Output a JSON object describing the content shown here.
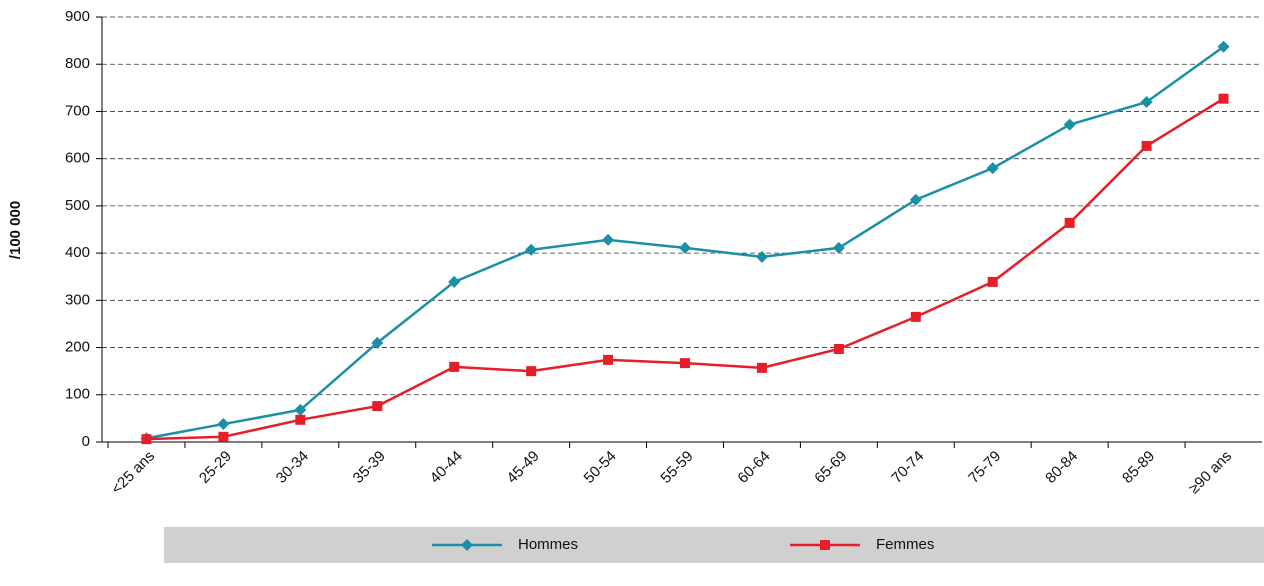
{
  "chart_data": {
    "type": "line",
    "ylabel": "/100 000",
    "categories": [
      "<25 ans",
      "25-29",
      "30-34",
      "35-39",
      "40-44",
      "45-49",
      "50-54",
      "55-59",
      "60-64",
      "65-69",
      "70-74",
      "75-79",
      "80-84",
      "85-89",
      "≥90 ans"
    ],
    "series": [
      {
        "name": "Hommes",
        "color": "#1a8fa6",
        "marker": "diamond",
        "values": [
          8,
          38,
          68,
          210,
          339,
          407,
          428,
          411,
          392,
          411,
          513,
          580,
          672,
          720,
          837
        ]
      },
      {
        "name": "Femmes",
        "color": "#e61e28",
        "marker": "square",
        "values": [
          6,
          11,
          47,
          76,
          159,
          150,
          174,
          167,
          157,
          197,
          265,
          339,
          464,
          627,
          727
        ]
      }
    ],
    "ylim": [
      0,
      900
    ],
    "yticks": [
      0,
      100,
      200,
      300,
      400,
      500,
      600,
      700,
      800,
      900
    ],
    "grid": true,
    "legend": "bottom"
  }
}
